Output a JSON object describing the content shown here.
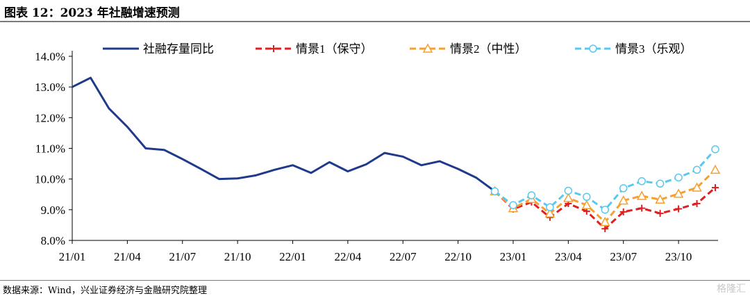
{
  "header": {
    "title": "图表 12：2023 年社融增速预测"
  },
  "footer": {
    "source": "数据来源：Wind，兴业证券经济与金融研究院整理",
    "watermark": "格隆汇"
  },
  "chart_data": {
    "type": "line",
    "title": "图表 12：2023 年社融增速预测",
    "xlabel": "",
    "ylabel": "",
    "ylim": [
      8.0,
      14.0
    ],
    "yticks": [
      "8.0%",
      "9.0%",
      "10.0%",
      "11.0%",
      "12.0%",
      "13.0%",
      "14.0%"
    ],
    "ytick_values": [
      8,
      9,
      10,
      11,
      12,
      13,
      14
    ],
    "x": [
      "21/01",
      "21/02",
      "21/03",
      "21/04",
      "21/05",
      "21/06",
      "21/07",
      "21/08",
      "21/09",
      "21/10",
      "21/11",
      "21/12",
      "22/01",
      "22/02",
      "22/03",
      "22/04",
      "22/05",
      "22/06",
      "22/07",
      "22/08",
      "22/09",
      "22/10",
      "22/11",
      "22/12",
      "23/01",
      "23/02",
      "23/03",
      "23/04",
      "23/05",
      "23/06",
      "23/07",
      "23/08",
      "23/09",
      "23/10",
      "23/11",
      "23/12"
    ],
    "xticks": [
      "21/01",
      "21/04",
      "21/07",
      "21/10",
      "22/01",
      "22/04",
      "22/07",
      "22/10",
      "23/01",
      "23/04",
      "23/07",
      "23/10"
    ],
    "legend_position": "top",
    "series": [
      {
        "name": "社融存量同比",
        "color": "#1f3a8a",
        "style": "solid",
        "marker": "none",
        "values": [
          13.0,
          13.3,
          12.3,
          11.7,
          11.0,
          10.95,
          10.65,
          10.33,
          10.0,
          10.02,
          10.12,
          10.3,
          10.45,
          10.2,
          10.55,
          10.25,
          10.48,
          10.85,
          10.73,
          10.45,
          10.58,
          10.33,
          10.04,
          9.6,
          null,
          null,
          null,
          null,
          null,
          null,
          null,
          null,
          null,
          null,
          null,
          null
        ]
      },
      {
        "name": "情景1（保守）",
        "color": "#e02020",
        "style": "dashed",
        "marker": "plus",
        "values": [
          null,
          null,
          null,
          null,
          null,
          null,
          null,
          null,
          null,
          null,
          null,
          null,
          null,
          null,
          null,
          null,
          null,
          null,
          null,
          null,
          null,
          null,
          null,
          9.6,
          9.02,
          9.25,
          8.75,
          9.2,
          8.95,
          8.38,
          8.93,
          9.05,
          8.88,
          9.03,
          9.2,
          9.72
        ]
      },
      {
        "name": "情景2（中性）",
        "color": "#f5a030",
        "style": "dashed",
        "marker": "triangle",
        "values": [
          null,
          null,
          null,
          null,
          null,
          null,
          null,
          null,
          null,
          null,
          null,
          null,
          null,
          null,
          null,
          null,
          null,
          null,
          null,
          null,
          null,
          null,
          null,
          9.6,
          9.05,
          9.35,
          8.88,
          9.38,
          9.15,
          8.6,
          9.3,
          9.45,
          9.33,
          9.52,
          9.72,
          10.3
        ]
      },
      {
        "name": "情景3（乐观）",
        "color": "#58c8ee",
        "style": "dashed",
        "marker": "circle",
        "values": [
          null,
          null,
          null,
          null,
          null,
          null,
          null,
          null,
          null,
          null,
          null,
          null,
          null,
          null,
          null,
          null,
          null,
          null,
          null,
          null,
          null,
          null,
          null,
          9.6,
          9.15,
          9.47,
          9.08,
          9.62,
          9.42,
          9.0,
          9.7,
          9.93,
          9.85,
          10.05,
          10.3,
          10.97
        ]
      }
    ]
  }
}
